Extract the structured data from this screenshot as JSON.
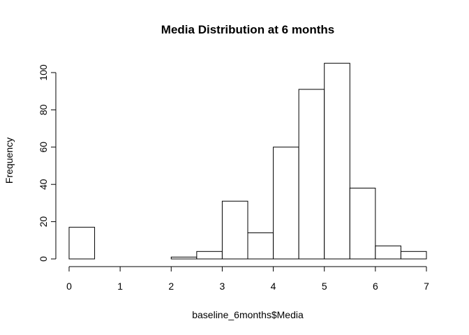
{
  "chart_data": {
    "type": "bar",
    "subtype": "histogram",
    "title": "Media Distribution at 6 months",
    "xlabel": "baseline_6months$Media",
    "ylabel": "Frequency",
    "xlim": [
      0,
      7
    ],
    "ylim": [
      0,
      105
    ],
    "x_ticks": [
      "0",
      "1",
      "2",
      "3",
      "4",
      "5",
      "6",
      "7"
    ],
    "y_ticks": [
      "0",
      "20",
      "40",
      "60",
      "80",
      "100"
    ],
    "bins": [
      {
        "start": 0.0,
        "end": 0.5,
        "count": 17
      },
      {
        "start": 0.5,
        "end": 1.0,
        "count": 0
      },
      {
        "start": 1.0,
        "end": 1.5,
        "count": 0
      },
      {
        "start": 1.5,
        "end": 2.0,
        "count": 0
      },
      {
        "start": 2.0,
        "end": 2.5,
        "count": 1
      },
      {
        "start": 2.5,
        "end": 3.0,
        "count": 4
      },
      {
        "start": 3.0,
        "end": 3.5,
        "count": 31
      },
      {
        "start": 3.5,
        "end": 4.0,
        "count": 14
      },
      {
        "start": 4.0,
        "end": 4.5,
        "count": 60
      },
      {
        "start": 4.5,
        "end": 5.0,
        "count": 91
      },
      {
        "start": 5.0,
        "end": 5.5,
        "count": 105
      },
      {
        "start": 5.5,
        "end": 6.0,
        "count": 38
      },
      {
        "start": 6.0,
        "end": 6.5,
        "count": 7
      },
      {
        "start": 6.5,
        "end": 7.0,
        "count": 4
      }
    ],
    "grid": false,
    "legend": "none",
    "colors": {
      "bar_fill": "#ffffff",
      "bar_stroke": "#000000"
    }
  }
}
